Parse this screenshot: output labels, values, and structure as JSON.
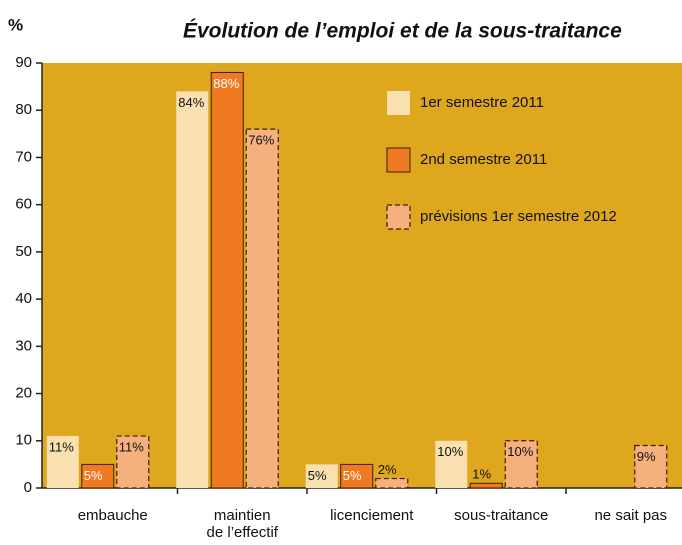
{
  "chart_data": {
    "type": "bar",
    "title": "Évolution de l’emploi et de la sous-traitance",
    "y_label": "%",
    "categories": [
      [
        "embauche"
      ],
      [
        "maintien",
        "de l’effectif"
      ],
      [
        "licenciement"
      ],
      [
        "sous-traitance"
      ],
      [
        "ne sait pas"
      ]
    ],
    "series": [
      {
        "name": "1er semestre 2011",
        "color": "#f8e0b0",
        "values": [
          11,
          84,
          5,
          10,
          null
        ],
        "value_labels": [
          "11%",
          "84%",
          "5%",
          "10%",
          null
        ]
      },
      {
        "name": "2nd semestre 2011",
        "color": "#f07a22",
        "values": [
          5,
          88,
          5,
          1,
          null
        ],
        "value_labels": [
          "5%",
          "88%",
          "5%",
          "1%",
          null
        ]
      },
      {
        "name": "prévisions 1er semestre 2012",
        "color": "#f5b07e",
        "values": [
          11,
          76,
          2,
          10,
          9
        ],
        "value_labels": [
          "11%",
          "76%",
          "2%",
          "10%",
          "9%"
        ]
      }
    ],
    "ylim": [
      0,
      90
    ],
    "yticks": [
      0,
      10,
      20,
      30,
      40,
      50,
      60,
      70,
      80,
      90
    ],
    "background": "#dfa71e"
  }
}
